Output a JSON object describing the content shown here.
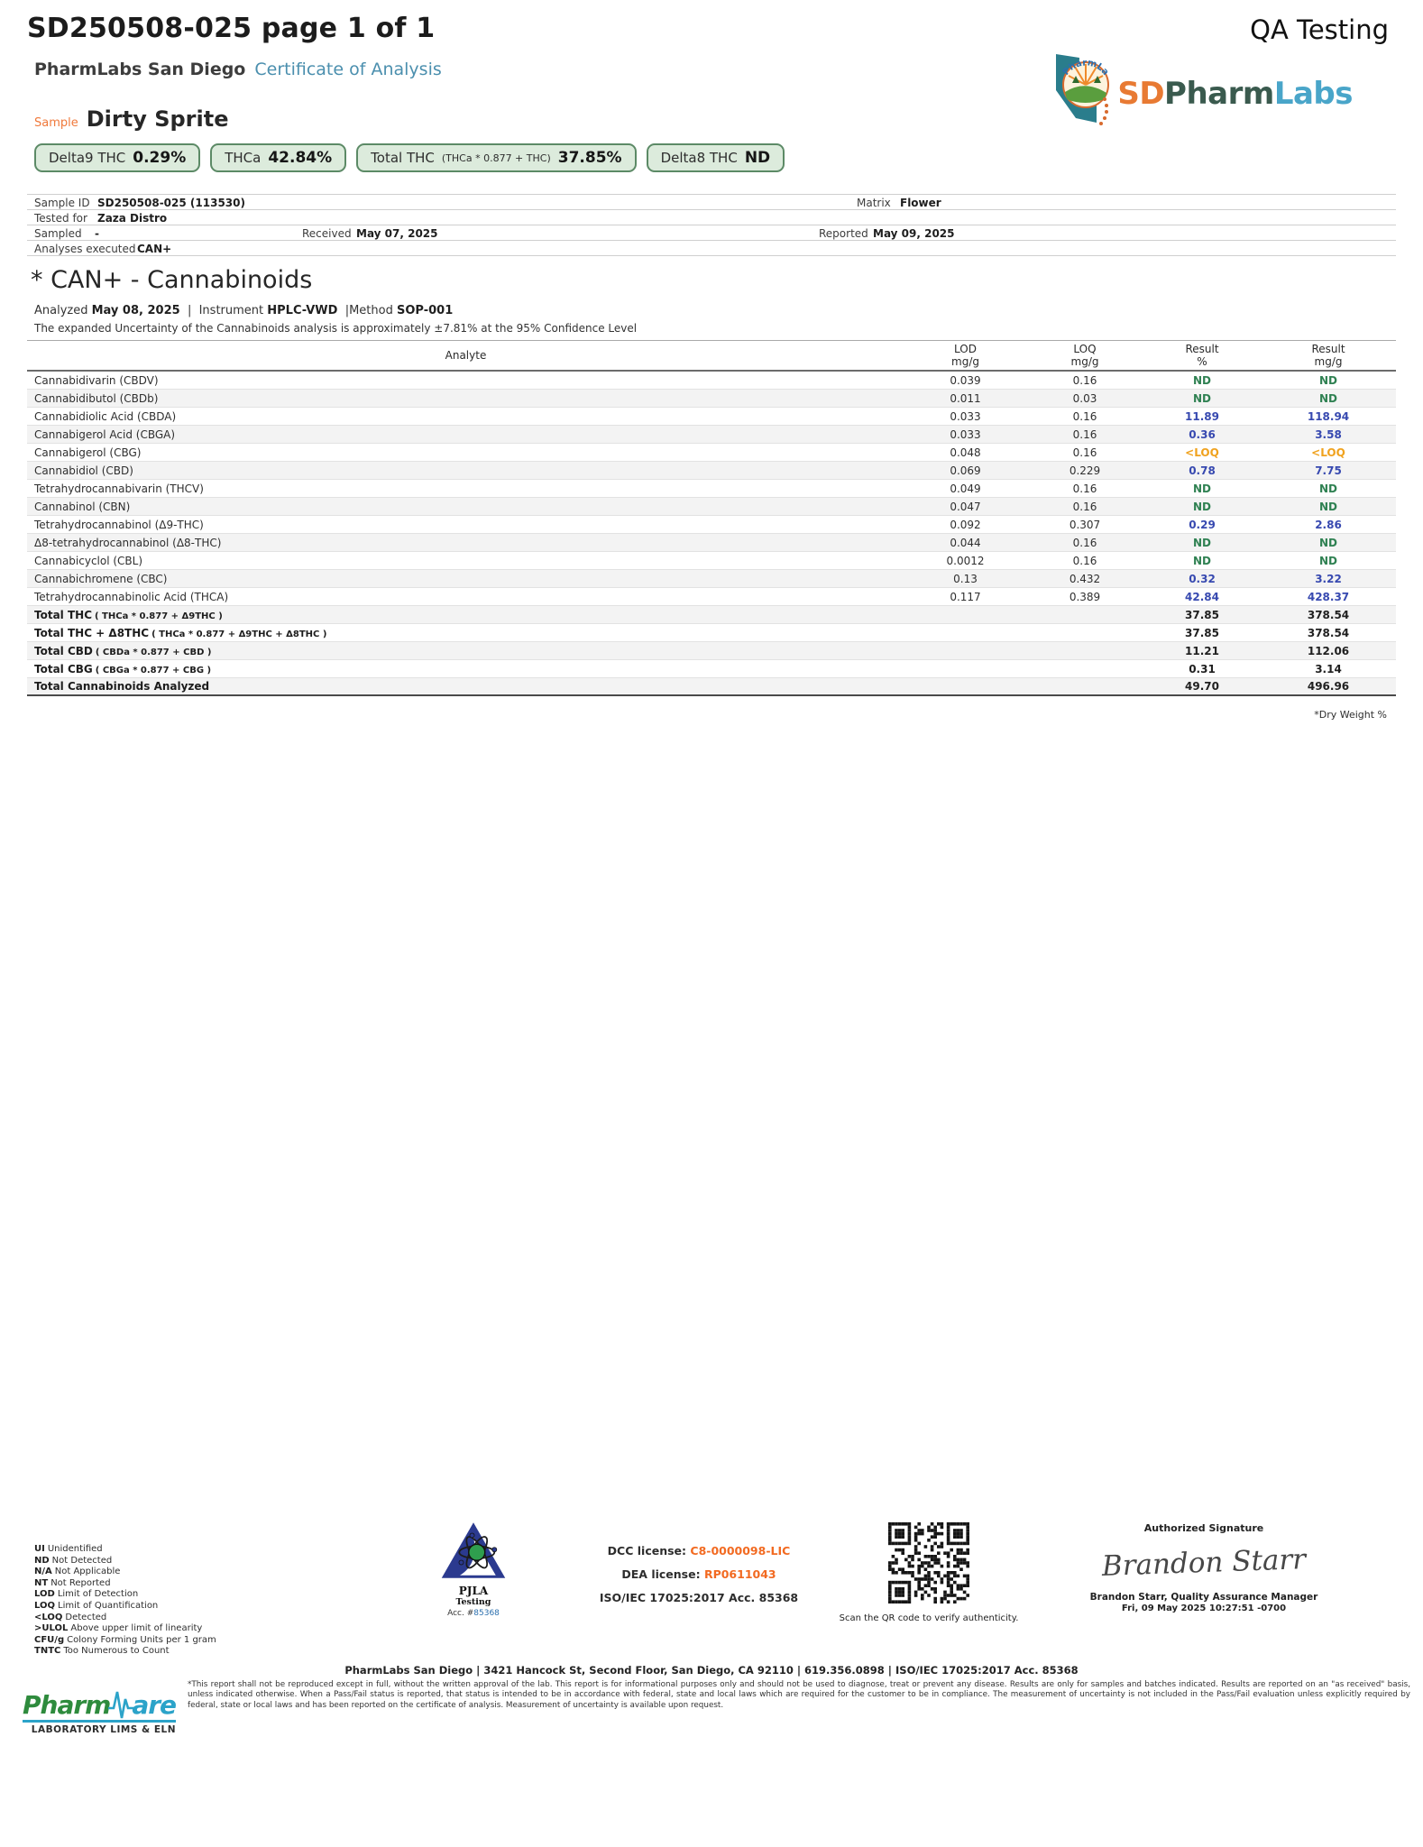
{
  "header": {
    "doc_title": "SD250508-025 page 1 of 1",
    "qa_label": "QA Testing",
    "lab_name": "PharmLabs San Diego",
    "doc_type": "Certificate of Analysis",
    "sample_label": "Sample",
    "sample_name": "Dirty Sprite",
    "brand": {
      "arc_text": "PharmLabs",
      "sd": "SD",
      "pharm": "Pharm",
      "labs": "Labs"
    }
  },
  "icons": {
    "brand_emblem": "pharmlabs-california-emblem",
    "qr": "qr-code",
    "pjla": "pjla-testing-accreditation-logo",
    "pharmware": "pharmware-lims-logo"
  },
  "badges": [
    {
      "label": "Delta9 THC",
      "formula": "",
      "value": "0.29%"
    },
    {
      "label": "THCa",
      "formula": "",
      "value": "42.84%"
    },
    {
      "label": "Total THC",
      "formula": "(THCa * 0.877 + THC)",
      "value": "37.85%"
    },
    {
      "label": "Delta8 THC",
      "formula": "",
      "value": "ND"
    }
  ],
  "sample_info": {
    "sample_id_label": "Sample ID",
    "sample_id": "SD250508-025 (113530)",
    "matrix_label": "Matrix",
    "matrix": "Flower",
    "tested_for_label": "Tested for",
    "tested_for": "Zaza Distro",
    "sampled_label": "Sampled",
    "sampled": "-",
    "received_label": "Received",
    "received": "May 07, 2025",
    "reported_label": "Reported",
    "reported": "May 09, 2025",
    "analyses_label": "Analyses executed",
    "analyses": "CAN+"
  },
  "section": {
    "title": "* CAN+ - Cannabinoids",
    "analyzed_label": "Analyzed",
    "analyzed": "May 08, 2025",
    "sep1": "|",
    "instrument_label": "Instrument",
    "instrument": "HPLC-VWD",
    "sep2": "|",
    "method_label": "Method",
    "method": "SOP-001",
    "uncertainty": "The expanded Uncertainty of the Cannabinoids analysis is approximately ±7.81% at the 95% Confidence Level"
  },
  "table": {
    "headers": [
      {
        "l1": "Analyte",
        "l2": ""
      },
      {
        "l1": "LOD",
        "l2": "mg/g"
      },
      {
        "l1": "LOQ",
        "l2": "mg/g"
      },
      {
        "l1": "Result",
        "l2": "%"
      },
      {
        "l1": "Result",
        "l2": "mg/g"
      }
    ],
    "rows": [
      {
        "name": "Cannabidivarin (CBDV)",
        "formula": "",
        "lod": "0.039",
        "loq": "0.16",
        "pct": "ND",
        "mgg": "ND",
        "style": "nd",
        "row_class": "row-analyte"
      },
      {
        "name": "Cannabidibutol (CBDb)",
        "formula": "",
        "lod": "0.011",
        "loq": "0.03",
        "pct": "ND",
        "mgg": "ND",
        "style": "nd",
        "row_class": "row-analyte"
      },
      {
        "name": "Cannabidiolic Acid (CBDA)",
        "formula": "",
        "lod": "0.033",
        "loq": "0.16",
        "pct": "11.89",
        "mgg": "118.94",
        "style": "num",
        "row_class": "row-analyte"
      },
      {
        "name": "Cannabigerol Acid (CBGA)",
        "formula": "",
        "lod": "0.033",
        "loq": "0.16",
        "pct": "0.36",
        "mgg": "3.58",
        "style": "num",
        "row_class": "row-analyte"
      },
      {
        "name": "Cannabigerol (CBG)",
        "formula": "",
        "lod": "0.048",
        "loq": "0.16",
        "pct": "<LOQ",
        "mgg": "<LOQ",
        "style": "loq",
        "row_class": "row-analyte"
      },
      {
        "name": "Cannabidiol (CBD)",
        "formula": "",
        "lod": "0.069",
        "loq": "0.229",
        "pct": "0.78",
        "mgg": "7.75",
        "style": "num",
        "row_class": "row-analyte"
      },
      {
        "name": "Tetrahydrocannabivarin (THCV)",
        "formula": "",
        "lod": "0.049",
        "loq": "0.16",
        "pct": "ND",
        "mgg": "ND",
        "style": "nd",
        "row_class": "row-analyte"
      },
      {
        "name": "Cannabinol (CBN)",
        "formula": "",
        "lod": "0.047",
        "loq": "0.16",
        "pct": "ND",
        "mgg": "ND",
        "style": "nd",
        "row_class": "row-analyte"
      },
      {
        "name": "Tetrahydrocannabinol (Δ9-THC)",
        "formula": "",
        "lod": "0.092",
        "loq": "0.307",
        "pct": "0.29",
        "mgg": "2.86",
        "style": "num",
        "row_class": "row-analyte"
      },
      {
        "name": "Δ8-tetrahydrocannabinol (Δ8-THC)",
        "formula": "",
        "lod": "0.044",
        "loq": "0.16",
        "pct": "ND",
        "mgg": "ND",
        "style": "nd",
        "row_class": "row-analyte"
      },
      {
        "name": "Cannabicyclol (CBL)",
        "formula": "",
        "lod": "0.0012",
        "loq": "0.16",
        "pct": "ND",
        "mgg": "ND",
        "style": "nd",
        "row_class": "row-analyte"
      },
      {
        "name": "Cannabichromene (CBC)",
        "formula": "",
        "lod": "0.13",
        "loq": "0.432",
        "pct": "0.32",
        "mgg": "3.22",
        "style": "num",
        "row_class": "row-analyte"
      },
      {
        "name": "Tetrahydrocannabinolic Acid (THCA)",
        "formula": "",
        "lod": "0.117",
        "loq": "0.389",
        "pct": "42.84",
        "mgg": "428.37",
        "style": "num",
        "row_class": "row-analyte"
      },
      {
        "name": "Total THC",
        "formula": "( THCa * 0.877 + Δ9THC )",
        "lod": "",
        "loq": "",
        "pct": "37.85",
        "mgg": "378.54",
        "style": "tot",
        "row_class": "row-total"
      },
      {
        "name": "Total THC + Δ8THC",
        "formula": "( THCa * 0.877 + Δ9THC + Δ8THC )",
        "lod": "",
        "loq": "",
        "pct": "37.85",
        "mgg": "378.54",
        "style": "tot",
        "row_class": "row-total"
      },
      {
        "name": "Total CBD",
        "formula": "( CBDa * 0.877 + CBD )",
        "lod": "",
        "loq": "",
        "pct": "11.21",
        "mgg": "112.06",
        "style": "tot",
        "row_class": "row-total"
      },
      {
        "name": "Total CBG",
        "formula": "( CBGa * 0.877 + CBG )",
        "lod": "",
        "loq": "",
        "pct": "0.31",
        "mgg": "3.14",
        "style": "tot",
        "row_class": "row-total"
      },
      {
        "name": "Total Cannabinoids Analyzed",
        "formula": "",
        "lod": "",
        "loq": "",
        "pct": "49.70",
        "mgg": "496.96",
        "style": "tot",
        "row_class": "row-total"
      }
    ],
    "dry_weight_note": "*Dry Weight %"
  },
  "footer": {
    "legend": [
      {
        "abbr": "UI",
        "text": "Unidentified"
      },
      {
        "abbr": "ND",
        "text": "Not Detected"
      },
      {
        "abbr": "N/A",
        "text": "Not Applicable"
      },
      {
        "abbr": "NT",
        "text": "Not Reported"
      },
      {
        "abbr": "LOD",
        "text": "Limit of Detection"
      },
      {
        "abbr": "LOQ",
        "text": "Limit of Quantification"
      },
      {
        "abbr": "<LOQ",
        "text": "Detected"
      },
      {
        "abbr": ">ULOL",
        "text": "Above upper limit of linearity"
      },
      {
        "abbr": "CFU/g",
        "text": "Colony Forming Units per 1 gram"
      },
      {
        "abbr": "TNTC",
        "text": "Too Numerous to Count"
      }
    ],
    "pjla": {
      "name": "PJLA",
      "sub": "Testing",
      "acc_label": "Acc. #",
      "acc": "85368"
    },
    "licenses": {
      "dcc_label": "DCC license:",
      "dcc": "C8-0000098-LIC",
      "dea_label": "DEA license:",
      "dea": "RP0611043",
      "iso": "ISO/IEC 17025:2017 Acc. 85368"
    },
    "qr_caption": "Scan the QR code to verify authenticity.",
    "signature": {
      "title": "Authorized Signature",
      "script": "Brandon Starr",
      "name_line": "Brandon Starr, Quality Assurance Manager",
      "date_line": "Fri, 09 May 2025 10:27:51 -0700"
    },
    "address": "PharmLabs San Diego | 3421 Hancock St, Second Floor, San Diego, CA 92110 | 619.356.0898 | ISO/IEC 17025:2017 Acc. 85368",
    "disclaimer": "*This report shall not be reproduced except in full, without the written approval of the lab. This report is for informational purposes only and should not be used to diagnose, treat or prevent any disease. Results are only for samples and batches indicated. Results are reported on an \"as received\" basis, unless indicated otherwise. When a Pass/Fail status is reported, that status is intended to be in accordance with federal, state and local laws which are required for the customer to be in compliance. The measurement of uncertainty is not included in the Pass/Fail evaluation unless explicitly required by federal, state or local laws and has been reported on the certificate of analysis. Measurement of uncertainty is available upon request.",
    "pharmware": {
      "pharm": "Pharm",
      "ware_suffix": "are",
      "tagline": "LABORATORY LIMS & ELN"
    }
  }
}
